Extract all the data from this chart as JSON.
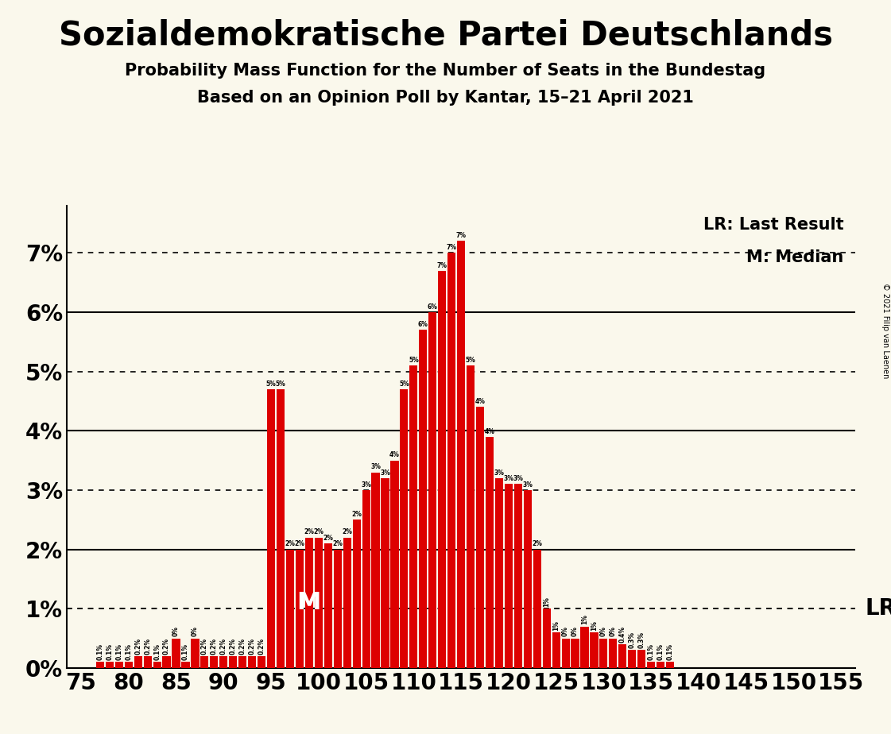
{
  "title": "Sozialdemokratische Partei Deutschlands",
  "subtitle1": "Probability Mass Function for the Number of Seats in the Bundestag",
  "subtitle2": "Based on an Opinion Poll by Kantar, 15–21 April 2021",
  "copyright": "© 2021 Filip van Laenen",
  "bar_color": "#dd0000",
  "bg_color": "#faf8ec",
  "annotation_M": "M",
  "annotation_LR": "LR",
  "legend_lr": "LR: Last Result",
  "legend_m": "M: Median",
  "median_seat": 99,
  "lr_value": 0.01,
  "seats": [
    75,
    76,
    77,
    78,
    79,
    80,
    81,
    82,
    83,
    84,
    85,
    86,
    87,
    88,
    89,
    90,
    91,
    92,
    93,
    94,
    95,
    96,
    97,
    98,
    99,
    100,
    101,
    102,
    103,
    104,
    105,
    106,
    107,
    108,
    109,
    110,
    111,
    112,
    113,
    114,
    115,
    116,
    117,
    118,
    119,
    120,
    121,
    122,
    123,
    124,
    125,
    126,
    127,
    128,
    129,
    130,
    131,
    132,
    133,
    134,
    135,
    136,
    137,
    138,
    139,
    140,
    141,
    142,
    143,
    144,
    145,
    146,
    147,
    148,
    149,
    150,
    151,
    152,
    153,
    154,
    155
  ],
  "values": [
    0.0,
    0.0,
    0.001,
    0.001,
    0.001,
    0.001,
    0.002,
    0.002,
    0.001,
    0.002,
    0.005,
    0.001,
    0.005,
    0.002,
    0.002,
    0.002,
    0.002,
    0.002,
    0.002,
    0.002,
    0.047,
    0.047,
    0.02,
    0.02,
    0.022,
    0.022,
    0.021,
    0.02,
    0.022,
    0.025,
    0.03,
    0.033,
    0.032,
    0.035,
    0.047,
    0.051,
    0.057,
    0.06,
    0.067,
    0.07,
    0.072,
    0.051,
    0.044,
    0.039,
    0.032,
    0.031,
    0.031,
    0.03,
    0.02,
    0.01,
    0.006,
    0.005,
    0.005,
    0.007,
    0.006,
    0.005,
    0.005,
    0.004,
    0.003,
    0.003,
    0.001,
    0.001,
    0.001,
    0.0,
    0.0,
    0.0,
    0.0,
    0.0,
    0.0,
    0.0,
    0.0,
    0.0,
    0.0,
    0.0,
    0.0,
    0.0,
    0.0,
    0.0,
    0.0,
    0.0,
    0.0
  ],
  "ylim": [
    0,
    0.078
  ],
  "yticks": [
    0.0,
    0.01,
    0.02,
    0.03,
    0.04,
    0.05,
    0.06,
    0.07
  ],
  "ytick_labels": [
    "0%",
    "1%",
    "2%",
    "3%",
    "4%",
    "5%",
    "6%",
    "7%"
  ],
  "xtick_positions": [
    75,
    80,
    85,
    90,
    95,
    100,
    105,
    110,
    115,
    120,
    125,
    130,
    135,
    140,
    145,
    150,
    155
  ],
  "solid_gridlines": [
    0.0,
    0.02,
    0.04,
    0.06
  ],
  "dotted_gridlines": [
    0.01,
    0.03,
    0.05,
    0.07
  ],
  "title_fontsize": 30,
  "subtitle_fontsize": 15,
  "tick_fontsize": 20,
  "label_fontsize": 6
}
